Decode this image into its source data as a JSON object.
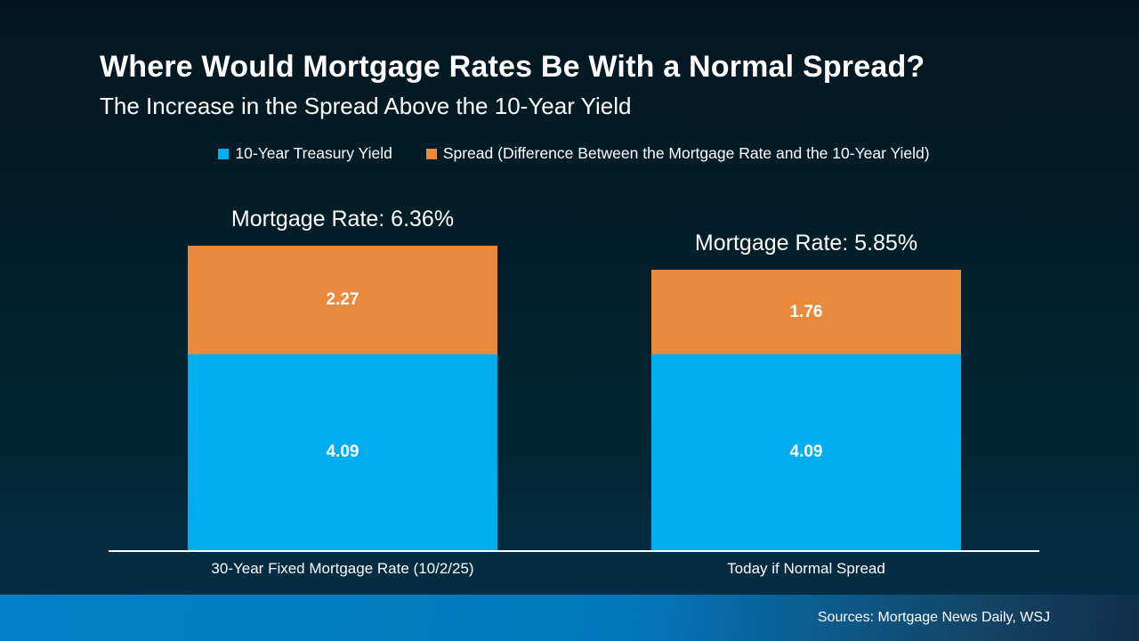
{
  "title": "Where Would Mortgage Rates Be With a Normal Spread?",
  "subtitle": "The Increase in the Spread Above the 10-Year Yield",
  "footer": {
    "sources": "Sources: Mortgage News Daily, WSJ"
  },
  "chart_data": {
    "type": "bar",
    "stacked": true,
    "title": "Where Would Mortgage Rates Be With a Normal Spread?",
    "subtitle": "The Increase in the Spread Above the 10-Year Yield",
    "categories": [
      "30-Year Fixed Mortgage Rate (10/2/25)",
      "Today if Normal Spread"
    ],
    "series": [
      {
        "name": "10-Year Treasury Yield",
        "color": "#00AEEF",
        "values": [
          4.09,
          4.09
        ]
      },
      {
        "name": "Spread (Difference Between the Mortgage Rate and the 10-Year Yield)",
        "color": "#E8893B",
        "values": [
          2.27,
          1.76
        ]
      }
    ],
    "totals": [
      6.36,
      5.85
    ],
    "total_labels": [
      "Mortgage Rate: 6.36%",
      "Mortgage Rate: 5.85%"
    ],
    "ylim": [
      0,
      6.36
    ],
    "grid": false,
    "legend_position": "top",
    "value_label_format": "2-decimals",
    "text_color": "#FFFFFF",
    "axis_line_color": "#FFFFFF"
  }
}
